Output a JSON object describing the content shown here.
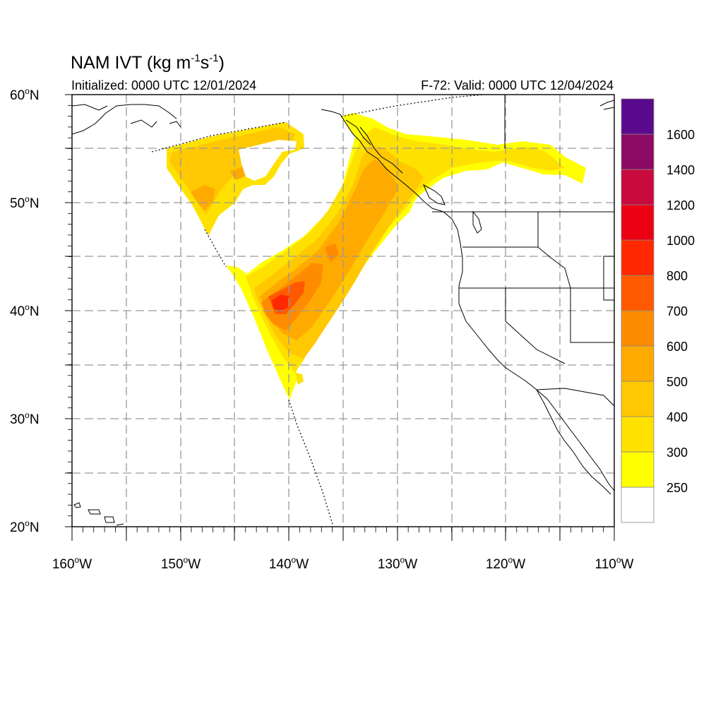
{
  "title": {
    "main": "NAM IVT (kg m",
    "sup1": "-1",
    "mid": "s",
    "sup2": "-1",
    "end": ")"
  },
  "initialized": "Initialized: 0000 UTC 12/01/2024",
  "valid": "F-72: Valid: 0000 UTC 12/04/2024",
  "lat_ticks": [
    {
      "value": 60,
      "deg": "60",
      "o": "o",
      "hemi": "N"
    },
    {
      "value": 50,
      "deg": "50",
      "o": "o",
      "hemi": "N"
    },
    {
      "value": 40,
      "deg": "40",
      "o": "o",
      "hemi": "N"
    },
    {
      "value": 30,
      "deg": "30",
      "o": "o",
      "hemi": "N"
    },
    {
      "value": 20,
      "deg": "20",
      "o": "o",
      "hemi": "N"
    }
  ],
  "lon_ticks": [
    {
      "value": -160,
      "deg": "160",
      "o": "o",
      "hemi": "W"
    },
    {
      "value": -150,
      "deg": "150",
      "o": "o",
      "hemi": "W"
    },
    {
      "value": -140,
      "deg": "140",
      "o": "o",
      "hemi": "W"
    },
    {
      "value": -130,
      "deg": "130",
      "o": "o",
      "hemi": "W"
    },
    {
      "value": -120,
      "deg": "120",
      "o": "o",
      "hemi": "W"
    },
    {
      "value": -110,
      "deg": "110",
      "o": "o",
      "hemi": "W"
    }
  ],
  "colorbar": {
    "bins": [
      {
        "color": "#ffffff"
      },
      {
        "color": "#ffff00"
      },
      {
        "color": "#ffe100"
      },
      {
        "color": "#ffc800"
      },
      {
        "color": "#ffaa00"
      },
      {
        "color": "#ff8c00"
      },
      {
        "color": "#ff5a00"
      },
      {
        "color": "#ff2800"
      },
      {
        "color": "#eb0014"
      },
      {
        "color": "#c80a3c"
      },
      {
        "color": "#8c0a64"
      },
      {
        "color": "#5a0a8c"
      }
    ],
    "labels": [
      "250",
      "300",
      "400",
      "500",
      "600",
      "700",
      "800",
      "1000",
      "1200",
      "1400",
      "1600"
    ]
  },
  "colors": {
    "ivt_250": "#ffff00",
    "ivt_300": "#ffe100",
    "ivt_400": "#ffc800",
    "ivt_500": "#ffaa00",
    "ivt_600": "#ff8c00",
    "ivt_700": "#ff5a00",
    "ivt_800": "#ff2800",
    "grid": "#999999",
    "coast": "#000000"
  }
}
